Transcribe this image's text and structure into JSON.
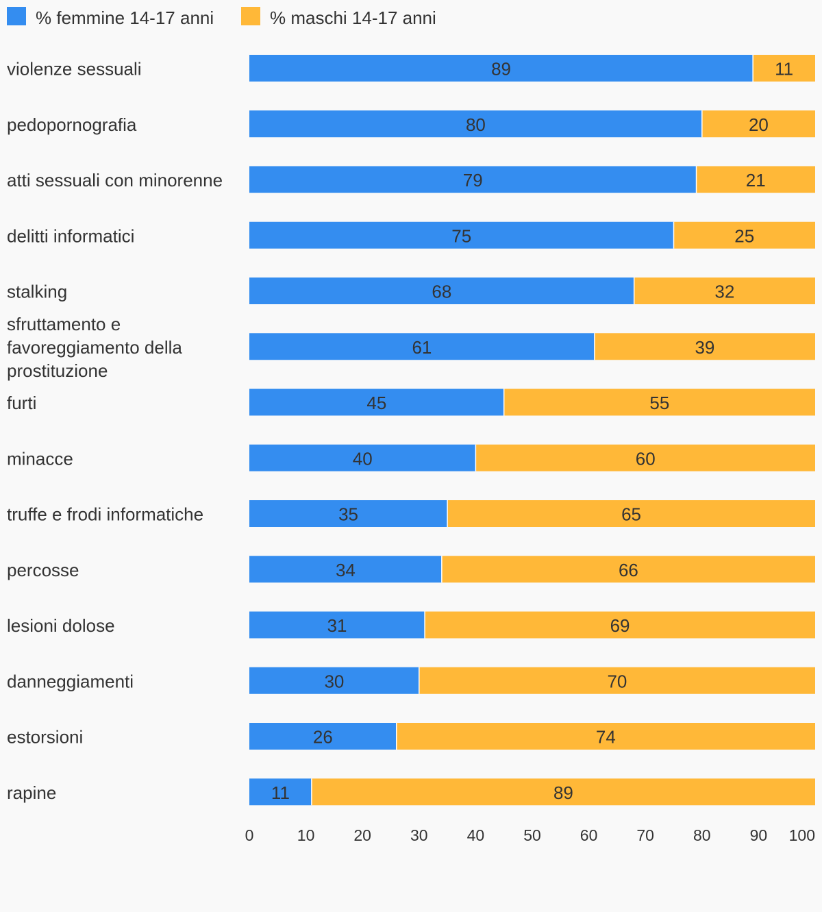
{
  "chart_data": {
    "type": "bar",
    "orientation": "horizontal",
    "stacked": true,
    "categories": [
      "violenze sessuali",
      "pedopornografia",
      "atti sessuali con minorenne",
      "delitti informatici",
      "stalking",
      "sfruttamento e favoreggiamento della prostituzione",
      "furti",
      "minacce",
      "truffe e frodi informatiche",
      "percosse",
      "lesioni dolose",
      "danneggiamenti",
      "estorsioni",
      "rapine"
    ],
    "series": [
      {
        "name": "% femmine 14-17 anni",
        "color": "#348df0",
        "values": [
          89,
          80,
          79,
          75,
          68,
          61,
          45,
          40,
          35,
          34,
          31,
          30,
          26,
          11
        ]
      },
      {
        "name": "% maschi 14-17 anni",
        "color": "#ffb838",
        "values": [
          11,
          20,
          21,
          25,
          32,
          39,
          55,
          60,
          65,
          66,
          69,
          70,
          74,
          89
        ]
      }
    ],
    "xlim": [
      0,
      100
    ],
    "xticks": [
      0,
      10,
      20,
      30,
      40,
      50,
      60,
      70,
      80,
      90,
      100
    ],
    "grid": false,
    "legend_position": "top-left",
    "data_labels": true
  }
}
